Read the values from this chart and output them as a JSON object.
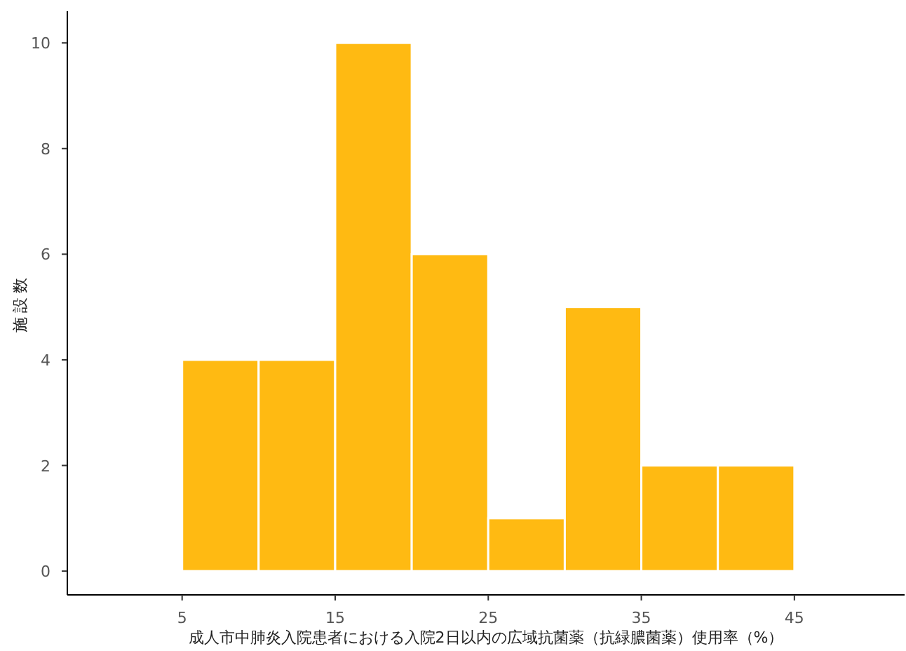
{
  "chart_data": {
    "type": "histogram",
    "xlabel": "成人市中肺炎入院患者における入院2日以内の広域抗菌薬（抗緑膿菌薬）使用率（%）",
    "ylabel": "施設数",
    "bins": [
      5,
      10,
      15,
      20,
      25,
      30,
      35,
      40,
      45
    ],
    "values": [
      4,
      4,
      10,
      6,
      1,
      5,
      2,
      2
    ],
    "color": "#ffba12",
    "xlim": [
      -2.5,
      52.2
    ],
    "xticks": [
      5,
      15,
      25,
      35,
      45
    ],
    "ylim": [
      -0.45,
      10.6
    ],
    "yticks": [
      0,
      2,
      4,
      6,
      8,
      10
    ]
  }
}
